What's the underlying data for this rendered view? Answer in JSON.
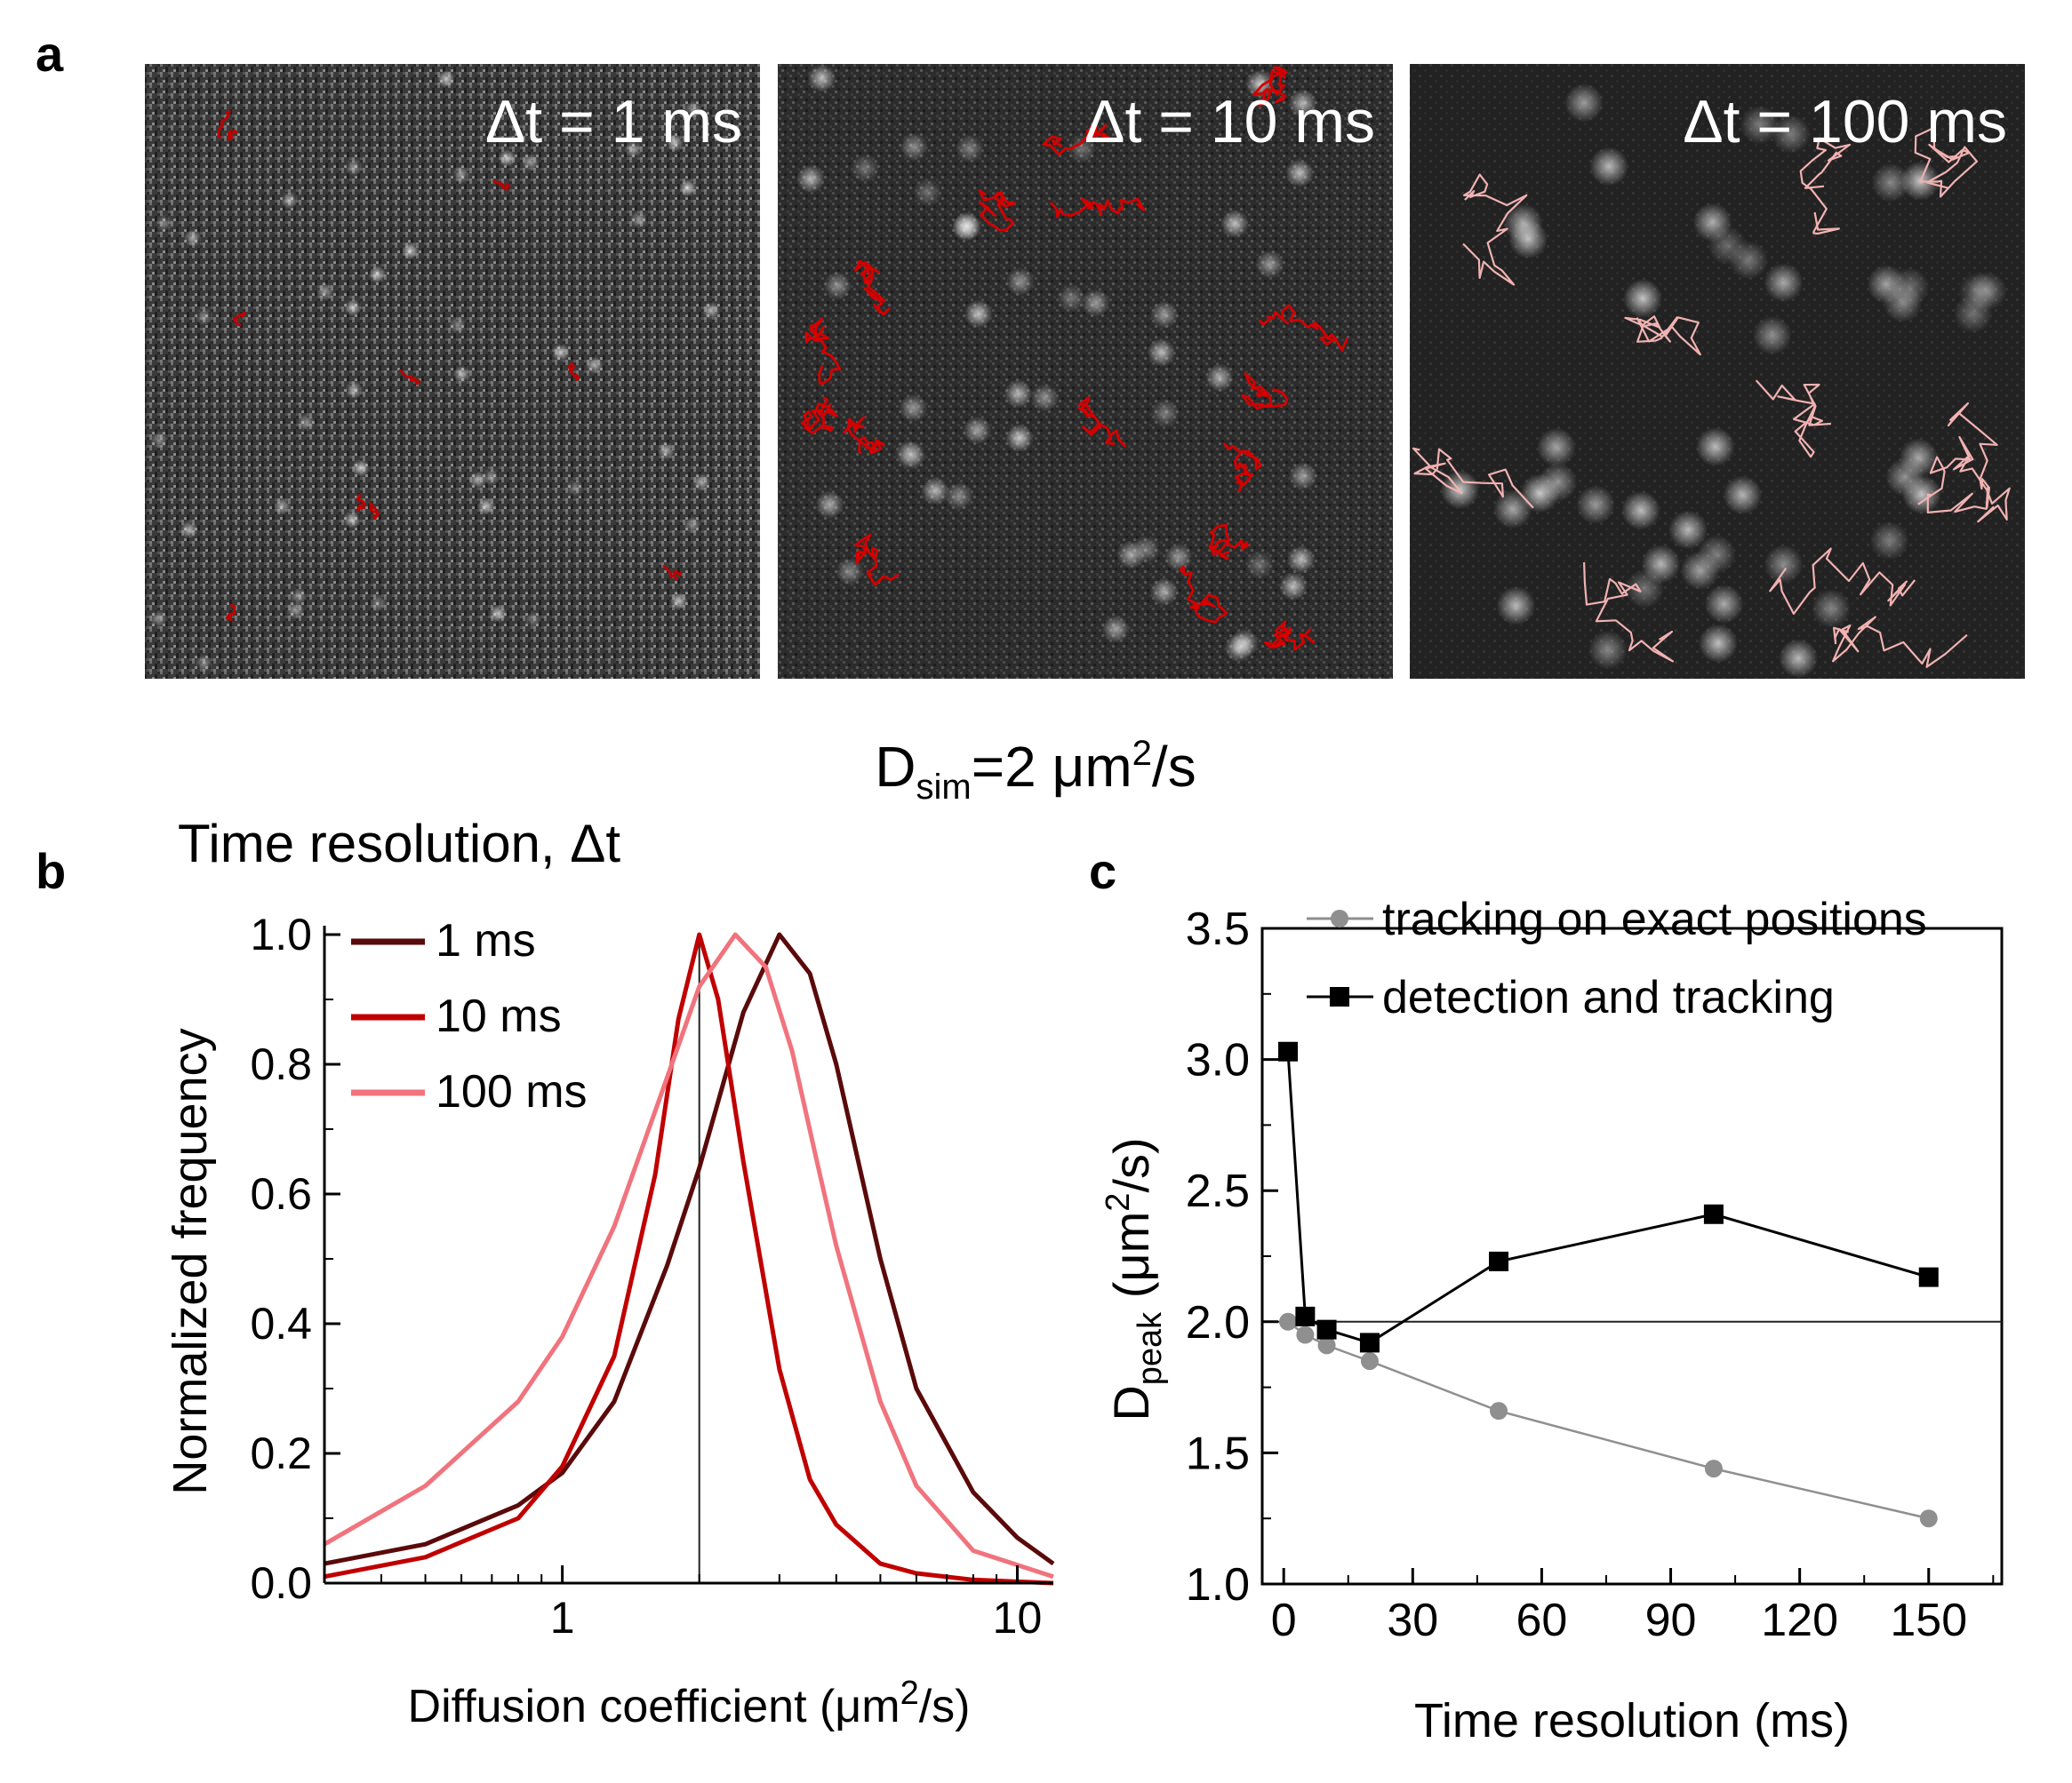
{
  "panels": {
    "a": {
      "label": "a",
      "images": [
        {
          "caption": "Δt = 1 ms",
          "track_color": "#c00000"
        },
        {
          "caption": "Δt = 10 ms",
          "track_color": "#d50000"
        },
        {
          "caption": "Δt = 100 ms",
          "track_color": "#f2b2b2"
        }
      ],
      "dsim": {
        "base": "D",
        "sub": "sim",
        "rest": "=2 μm",
        "sup": "2",
        "tail": "/s"
      }
    },
    "b": {
      "label": "b"
    },
    "c": {
      "label": "c"
    }
  },
  "chart_data": [
    {
      "type": "line",
      "title": "Time resolution, Δt",
      "xlabel_main": "Diffusion coefficient",
      "xlabel_unit": {
        "pre": "(μm",
        "sup": "2",
        "post": "/s)"
      },
      "ylabel": "Normalized frequency",
      "xscale": "log",
      "xlim": [
        0.3,
        12
      ],
      "ylim": [
        0,
        1.0
      ],
      "xticks": [
        1,
        10
      ],
      "xtick_labels": [
        "1",
        "10"
      ],
      "yticks": [
        0.0,
        0.2,
        0.4,
        0.6,
        0.8,
        1.0
      ],
      "ytick_labels": [
        "0.0",
        "0.2",
        "0.4",
        "0.6",
        "0.8",
        "1.0"
      ],
      "reference_x": 2,
      "legend_position": "top-left",
      "series": [
        {
          "name": "1 ms",
          "color": "#5a0a0a",
          "x": [
            0.3,
            0.5,
            0.8,
            1.0,
            1.3,
            1.7,
            2.0,
            2.5,
            3.0,
            3.5,
            4.0,
            5.0,
            6.0,
            8.0,
            10.0,
            12.0
          ],
          "y": [
            0.03,
            0.06,
            0.12,
            0.17,
            0.28,
            0.49,
            0.64,
            0.88,
            1.0,
            0.94,
            0.8,
            0.5,
            0.3,
            0.14,
            0.07,
            0.03
          ]
        },
        {
          "name": "10 ms",
          "color": "#c00000",
          "x": [
            0.3,
            0.5,
            0.8,
            1.0,
            1.3,
            1.6,
            1.8,
            2.0,
            2.2,
            2.5,
            3.0,
            3.5,
            4.0,
            5.0,
            6.0,
            8.0,
            12.0
          ],
          "y": [
            0.01,
            0.04,
            0.1,
            0.18,
            0.35,
            0.63,
            0.87,
            1.0,
            0.9,
            0.65,
            0.33,
            0.16,
            0.09,
            0.03,
            0.015,
            0.005,
            0.0
          ]
        },
        {
          "name": "100 ms",
          "color": "#f0737d",
          "x": [
            0.3,
            0.5,
            0.8,
            1.0,
            1.3,
            1.7,
            2.0,
            2.4,
            2.8,
            3.2,
            3.6,
            4.0,
            5.0,
            6.0,
            8.0,
            12.0
          ],
          "y": [
            0.06,
            0.15,
            0.28,
            0.38,
            0.55,
            0.78,
            0.92,
            1.0,
            0.95,
            0.82,
            0.66,
            0.52,
            0.28,
            0.15,
            0.05,
            0.01
          ]
        }
      ]
    },
    {
      "type": "line",
      "xlabel": "Time resolution (ms)",
      "ylabel": {
        "base": "D",
        "sub": "peak",
        "pre": " (μm",
        "sup": "2",
        "post": "/s)"
      },
      "xlim": [
        -5,
        167
      ],
      "ylim": [
        1.0,
        3.5
      ],
      "xticks": [
        0,
        30,
        60,
        90,
        120,
        150
      ],
      "xtick_labels": [
        "0",
        "30",
        "60",
        "90",
        "120",
        "150"
      ],
      "yticks": [
        1.0,
        1.5,
        2.0,
        2.5,
        3.0,
        3.5
      ],
      "ytick_labels": [
        "1.0",
        "1.5",
        "2.0",
        "2.5",
        "3.0",
        "3.5"
      ],
      "reference_y": 2.0,
      "legend_position": "top",
      "series": [
        {
          "name": "tracking on exact positions",
          "color": "#8f8f8f",
          "marker": "circle",
          "x": [
            1,
            5,
            10,
            20,
            50,
            100,
            150
          ],
          "y": [
            2.0,
            1.95,
            1.91,
            1.85,
            1.66,
            1.44,
            1.25
          ]
        },
        {
          "name": "detection and tracking",
          "color": "#000000",
          "marker": "square",
          "x": [
            1,
            5,
            10,
            20,
            50,
            100,
            150
          ],
          "y": [
            3.03,
            2.02,
            1.97,
            1.92,
            2.23,
            2.41,
            2.17
          ]
        }
      ]
    }
  ]
}
